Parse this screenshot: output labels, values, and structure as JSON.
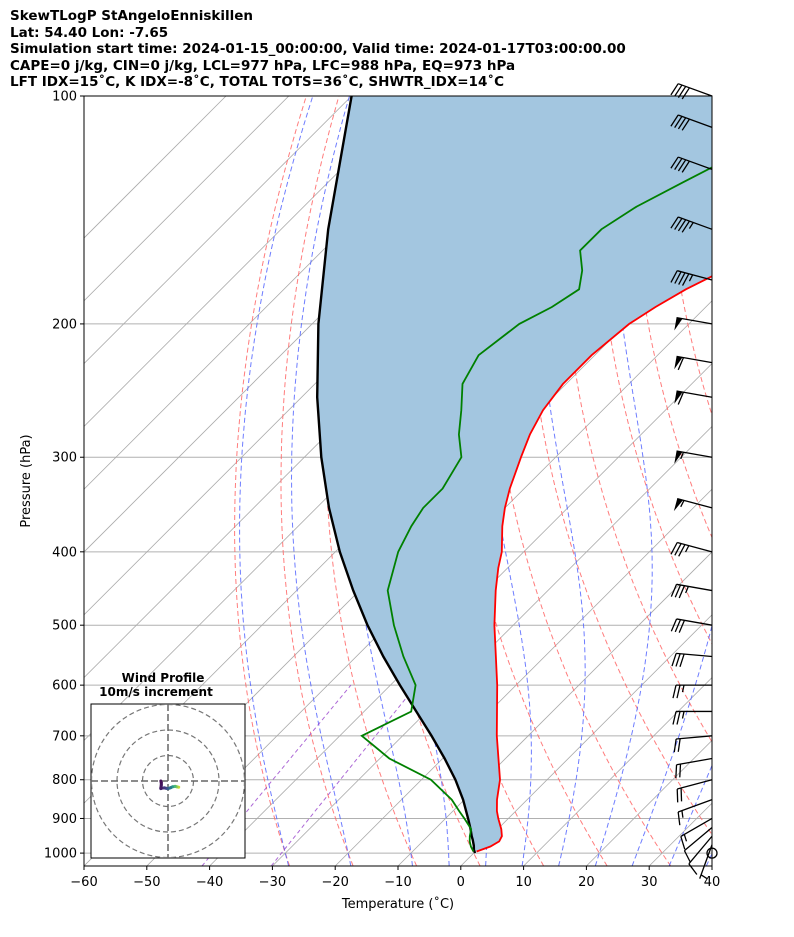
{
  "header": {
    "line1": "SkewTLogP StAngeloEnniskillen",
    "line2": "Lat: 54.40   Lon: -7.65",
    "line3": "Simulation start time: 2024-01-15_00:00:00, Valid time: 2024-01-17T03:00:00.00",
    "line4": "CAPE=0 j/kg, CIN=0 j/kg, LCL=977 hPa, LFC=988 hPa, EQ=973 hPa",
    "line5": "LFT IDX=15˚C, K IDX=-8˚C, TOTAL TOTS=36˚C, SHWTR_IDX=14˚C"
  },
  "colors": {
    "temperature": "#ff0000",
    "dewpoint": "#008000",
    "parcel": "#000000",
    "cape_fill": "#a3c6e0",
    "dry_adiabats": "#ff6666",
    "moist_adiabats": "#5566ff",
    "isotherms": "#aaaaaa",
    "mixing_ratio": "#9944cc"
  },
  "chart_data": {
    "type": "skewt",
    "xlabel": "Temperature (˚C)",
    "ylabel": "Pressure (hPa)",
    "xlim": [
      -60,
      40
    ],
    "ylim": [
      1040,
      100
    ],
    "xticks": [
      "−60",
      "−50",
      "−40",
      "−30",
      "−20",
      "−10",
      "0",
      "10",
      "20",
      "30",
      "40"
    ],
    "xtick_values": [
      -60,
      -50,
      -40,
      -30,
      -20,
      -10,
      0,
      10,
      20,
      30,
      40
    ],
    "yticks": [
      "1000",
      "900",
      "800",
      "700",
      "600",
      "500",
      "400",
      "300",
      "200",
      "100"
    ],
    "ytick_values": [
      1000,
      900,
      800,
      700,
      600,
      500,
      400,
      300,
      200,
      100
    ],
    "temperature": {
      "pressure": [
        995,
        980,
        965,
        950,
        930,
        900,
        880,
        850,
        800,
        700,
        600,
        500,
        450,
        420,
        400,
        370,
        350,
        330,
        300,
        280,
        260,
        240,
        220,
        200,
        190,
        180,
        170,
        160,
        150,
        140,
        130,
        120,
        110,
        100
      ],
      "temp": [
        0.2,
        1.6,
        2.2,
        1.8,
        0.6,
        -1.6,
        -3.0,
        -4.8,
        -7.5,
        -15.0,
        -23.0,
        -33.0,
        -38.3,
        -41.5,
        -43.5,
        -47.5,
        -50.0,
        -52.3,
        -55.5,
        -57.7,
        -59.5,
        -60.5,
        -60.5,
        -59.5,
        -58.0,
        -56.0,
        -53.0,
        -49.0,
        -45.5,
        -42.0,
        -38.5,
        -35.5,
        -32.5,
        -30.0
      ]
    },
    "dewpoint": {
      "pressure": [
        995,
        980,
        965,
        950,
        930,
        900,
        880,
        850,
        800,
        750,
        700,
        650,
        600,
        550,
        500,
        450,
        400,
        370,
        350,
        330,
        300,
        280,
        260,
        240,
        220,
        200,
        190,
        180,
        170,
        160,
        150,
        140,
        130,
        120,
        110,
        100
      ],
      "dewpt": [
        -0.3,
        -1.5,
        -2.5,
        -3.3,
        -4.2,
        -7.0,
        -9.0,
        -12.0,
        -18.5,
        -28.5,
        -36.5,
        -32.5,
        -36.0,
        -42.5,
        -49.0,
        -55.5,
        -60.0,
        -62.0,
        -63.0,
        -63.0,
        -65.0,
        -69.0,
        -72.5,
        -76.5,
        -78.5,
        -77.0,
        -74.5,
        -73.0,
        -75.5,
        -79.0,
        -79.0,
        -77.0,
        -73.5,
        -69.5,
        -65.5,
        -62.0
      ]
    },
    "parcel": {
      "pressure": [
        1000,
        990,
        977,
        960,
        950,
        930,
        900,
        880,
        850,
        800,
        750,
        700,
        650,
        600,
        550,
        500,
        450,
        400,
        350,
        300,
        250,
        200,
        150,
        100
      ],
      "temp": [
        0.2,
        -0.5,
        -1.2,
        -2.3,
        -3.0,
        -4.3,
        -6.4,
        -7.9,
        -10.2,
        -14.6,
        -19.7,
        -25.4,
        -31.7,
        -38.5,
        -45.7,
        -53.2,
        -61.0,
        -69.3,
        -78.0,
        -87.3,
        -97.5,
        -109.0,
        -122.5,
        -140.0
      ]
    },
    "wind_barbs": {
      "pressure": [
        1000,
        975,
        950,
        925,
        900,
        850,
        800,
        750,
        700,
        650,
        600,
        550,
        500,
        450,
        400,
        350,
        300,
        250,
        225,
        200,
        175,
        150,
        125,
        110,
        100
      ],
      "speed_kt": [
        0,
        5,
        10,
        10,
        15,
        15,
        20,
        20,
        20,
        25,
        25,
        30,
        30,
        35,
        35,
        55,
        55,
        60,
        60,
        50,
        45,
        45,
        40,
        40,
        40
      ],
      "dir_deg": [
        0,
        200,
        220,
        230,
        240,
        250,
        255,
        260,
        265,
        270,
        270,
        275,
        280,
        280,
        285,
        285,
        280,
        280,
        280,
        280,
        285,
        290,
        290,
        290,
        290
      ]
    },
    "hodograph": {
      "title": "Wind Profile",
      "subtitle": "10m/s increment",
      "u": [
        12.0,
        10.0,
        8.0,
        5.0,
        3.0,
        0.0,
        -2.0,
        -4.0,
        -7.0,
        -8.0,
        -8.0,
        -7.5,
        -7.5,
        -8.0
      ],
      "v": [
        -7.0,
        -6.5,
        -6.0,
        -6.5,
        -7.5,
        -8.5,
        -8.2,
        -7.7,
        -8.0,
        -8.5,
        -7.5,
        -4.5,
        -2.0,
        0.0
      ],
      "rings_ms": [
        10,
        20,
        30
      ]
    }
  }
}
